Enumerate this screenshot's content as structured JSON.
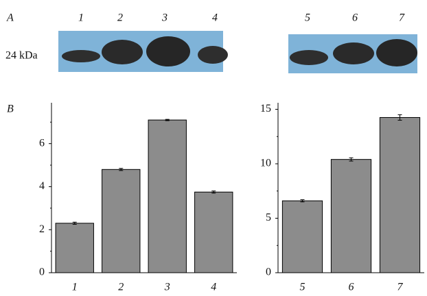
{
  "panel_labels": [
    "A",
    "B"
  ],
  "blot": {
    "marker": "24 kDa",
    "lanes": [
      "1",
      "2",
      "3",
      "4",
      "5",
      "6",
      "7"
    ]
  },
  "chart_data": [
    {
      "type": "bar",
      "categories": [
        "1",
        "2",
        "3",
        "4"
      ],
      "values": [
        2.3,
        4.8,
        7.1,
        3.75
      ],
      "errors": [
        0.05,
        0.05,
        0.03,
        0.05
      ],
      "color": "#8c8c8c",
      "ylim": [
        0,
        7.9
      ],
      "yticks": [
        0,
        2,
        4,
        6
      ],
      "yminor": [
        1,
        3,
        5,
        7
      ]
    },
    {
      "type": "bar",
      "categories": [
        "5",
        "6",
        "7"
      ],
      "values": [
        6.6,
        10.4,
        14.25
      ],
      "errors": [
        0.1,
        0.15,
        0.25
      ],
      "color": "#8c8c8c",
      "ylim": [
        0,
        15.6
      ],
      "yticks": [
        0,
        5,
        10,
        15
      ],
      "yminor": [
        2.5,
        7.5,
        12.5
      ]
    }
  ]
}
